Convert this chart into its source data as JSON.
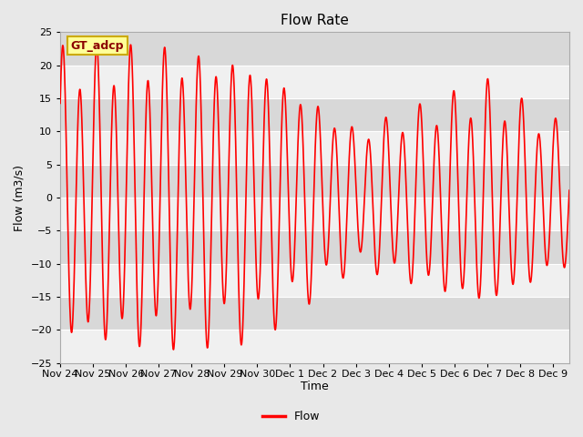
{
  "title": "Flow Rate",
  "xlabel": "Time",
  "ylabel": "Flow (m3/s)",
  "ylim": [
    -25,
    25
  ],
  "yticks": [
    -25,
    -20,
    -15,
    -10,
    -5,
    0,
    5,
    10,
    15,
    20,
    25
  ],
  "line_color": "#FF0000",
  "line_width": 1.2,
  "background_color": "#E8E8E8",
  "plot_bg_color": "#DCDCDC",
  "annotation_text": "GT_adcp",
  "annotation_bg": "#FFFF99",
  "annotation_border": "#CCAA00",
  "legend_label": "Flow",
  "num_days": 15.5,
  "tidal_period_hours": 12.42,
  "x_tick_labels": [
    "Nov 24",
    "Nov 25",
    "Nov 26",
    "Nov 27",
    "Nov 28",
    "Nov 29",
    "Nov 30",
    "Dec 1",
    "Dec 2",
    "Dec 3",
    "Dec 4",
    "Dec 5",
    "Dec 6",
    "Dec 7",
    "Dec 8",
    "Dec 9"
  ],
  "band_color_light": "#F0F0F0",
  "band_color_dark": "#D8D8D8"
}
